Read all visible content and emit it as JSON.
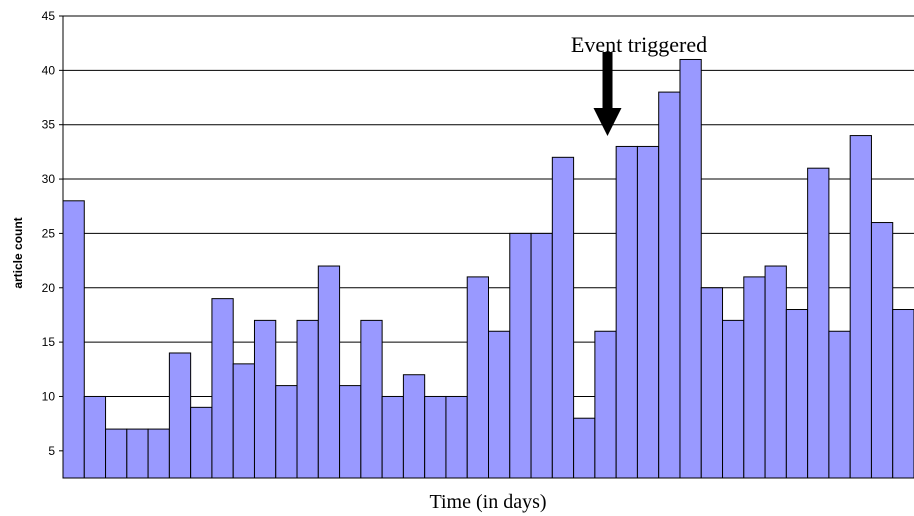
{
  "chart_data": {
    "type": "bar",
    "title": "",
    "xlabel": "Time (in days)",
    "ylabel": "article count",
    "ylim": [
      2.5,
      45
    ],
    "yticks": [
      5,
      10,
      15,
      20,
      25,
      30,
      35,
      40,
      45
    ],
    "grid": true,
    "legend": "none",
    "bar_color": "#9999ff",
    "values": [
      28,
      10,
      7,
      7,
      7,
      14,
      9,
      19,
      13,
      17,
      11,
      17,
      22,
      11,
      17,
      10,
      12,
      10,
      10,
      21,
      16,
      25,
      25,
      32,
      8,
      16,
      33,
      33,
      38,
      41,
      20,
      17,
      21,
      22,
      18,
      31,
      16,
      34,
      26,
      18
    ],
    "annotation": {
      "text": "Event triggered",
      "arrow_at_index": 26
    }
  }
}
